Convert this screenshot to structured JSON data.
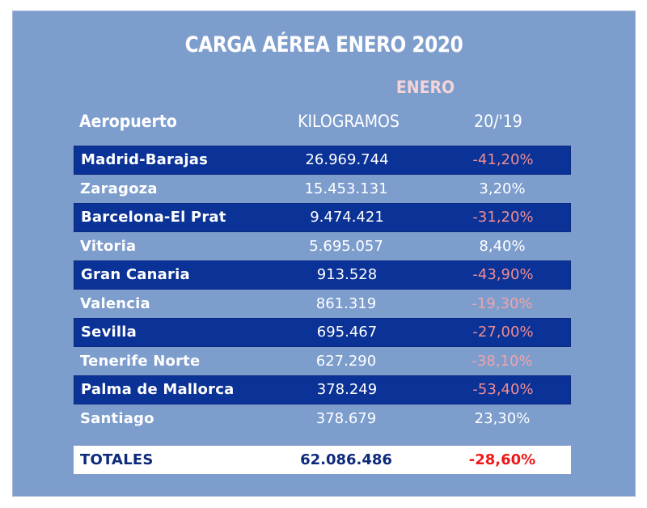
{
  "title": "CARGA AÉREA ENERO 2020",
  "month_header": "ENERO",
  "columns": {
    "airport": "Aeropuerto",
    "kilograms": "KILOGRAMOS",
    "change": "20/'19"
  },
  "colors": {
    "panel_background": "#7d9dcd",
    "dark_row": "#0b3296",
    "month_header": "#f4d4d8",
    "negative_text": "#ee8c92",
    "total_text": "#0d2a7a",
    "total_negative": "#f01818"
  },
  "rows": [
    {
      "airport": "Madrid-Barajas",
      "kilograms": "26.969.744",
      "change": "-41,20%"
    },
    {
      "airport": "Zaragoza",
      "kilograms": "15.453.131",
      "change": "3,20%"
    },
    {
      "airport": "Barcelona-El Prat",
      "kilograms": "9.474.421",
      "change": "-31,20%"
    },
    {
      "airport": "Vitoria",
      "kilograms": "5.695.057",
      "change": "8,40%"
    },
    {
      "airport": "Gran Canaria",
      "kilograms": "913.528",
      "change": "-43,90%"
    },
    {
      "airport": "Valencia",
      "kilograms": "861.319",
      "change": "-19,30%"
    },
    {
      "airport": "Sevilla",
      "kilograms": "695.467",
      "change": "-27,00%"
    },
    {
      "airport": "Tenerife Norte",
      "kilograms": "627.290",
      "change": "-38,10%"
    },
    {
      "airport": "Palma de Mallorca",
      "kilograms": "378.249",
      "change": "-53,40%"
    },
    {
      "airport": "Santiago",
      "kilograms": "378.679",
      "change": "23,30%"
    }
  ],
  "totals": {
    "label": "TOTALES",
    "kilograms": "62.086.486",
    "change": "-28,60%"
  }
}
